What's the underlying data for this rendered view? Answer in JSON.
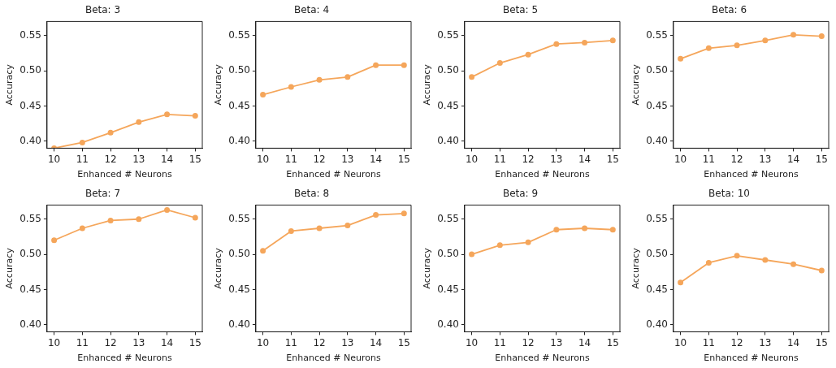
{
  "chart_data": [
    {
      "type": "line",
      "title": "Beta: 3",
      "xlabel": "Enhanced # Neurons",
      "ylabel": "Accuracy",
      "x": [
        10,
        11,
        12,
        13,
        14,
        15
      ],
      "series": [
        {
          "color": "#f5a65b",
          "values": [
            0.39,
            0.398,
            0.412,
            0.427,
            0.438,
            0.436
          ]
        }
      ],
      "xlim": [
        9.75,
        15.25
      ],
      "xticks": [
        10,
        11,
        12,
        13,
        14,
        15
      ],
      "ylim": [
        0.39,
        0.57
      ],
      "yticks": [
        {
          "value": 0.4,
          "label": "0.40"
        },
        {
          "value": 0.45,
          "label": "0.45"
        },
        {
          "value": 0.5,
          "label": "0.50"
        },
        {
          "value": 0.55,
          "label": "0.55"
        }
      ],
      "marker": "circle",
      "line_style": "solid",
      "grid": false,
      "legend": false
    },
    {
      "type": "line",
      "title": "Beta: 4",
      "xlabel": "Enhanced # Neurons",
      "ylabel": "Accuracy",
      "x": [
        10,
        11,
        12,
        13,
        14,
        15
      ],
      "series": [
        {
          "color": "#f5a65b",
          "values": [
            0.466,
            0.477,
            0.487,
            0.491,
            0.508,
            0.508
          ]
        }
      ],
      "xlim": [
        9.75,
        15.25
      ],
      "xticks": [
        10,
        11,
        12,
        13,
        14,
        15
      ],
      "ylim": [
        0.39,
        0.57
      ],
      "yticks": [
        {
          "value": 0.4,
          "label": "0.40"
        },
        {
          "value": 0.45,
          "label": "0.45"
        },
        {
          "value": 0.5,
          "label": "0.50"
        },
        {
          "value": 0.55,
          "label": "0.55"
        }
      ],
      "marker": "circle",
      "line_style": "solid",
      "grid": false,
      "legend": false
    },
    {
      "type": "line",
      "title": "Beta: 5",
      "xlabel": "Enhanced # Neurons",
      "ylabel": "Accuracy",
      "x": [
        10,
        11,
        12,
        13,
        14,
        15
      ],
      "series": [
        {
          "color": "#f5a65b",
          "values": [
            0.491,
            0.511,
            0.523,
            0.538,
            0.54,
            0.543
          ]
        }
      ],
      "xlim": [
        9.75,
        15.25
      ],
      "xticks": [
        10,
        11,
        12,
        13,
        14,
        15
      ],
      "ylim": [
        0.39,
        0.57
      ],
      "yticks": [
        {
          "value": 0.4,
          "label": "0.40"
        },
        {
          "value": 0.45,
          "label": "0.45"
        },
        {
          "value": 0.5,
          "label": "0.50"
        },
        {
          "value": 0.55,
          "label": "0.55"
        }
      ],
      "marker": "circle",
      "line_style": "solid",
      "grid": false,
      "legend": false
    },
    {
      "type": "line",
      "title": "Beta: 6",
      "xlabel": "Enhanced # Neurons",
      "ylabel": "Accuracy",
      "x": [
        10,
        11,
        12,
        13,
        14,
        15
      ],
      "series": [
        {
          "color": "#f5a65b",
          "values": [
            0.517,
            0.532,
            0.536,
            0.543,
            0.551,
            0.549
          ]
        }
      ],
      "xlim": [
        9.75,
        15.25
      ],
      "xticks": [
        10,
        11,
        12,
        13,
        14,
        15
      ],
      "ylim": [
        0.39,
        0.57
      ],
      "yticks": [
        {
          "value": 0.4,
          "label": "0.40"
        },
        {
          "value": 0.45,
          "label": "0.45"
        },
        {
          "value": 0.5,
          "label": "0.50"
        },
        {
          "value": 0.55,
          "label": "0.55"
        }
      ],
      "marker": "circle",
      "line_style": "solid",
      "grid": false,
      "legend": false
    },
    {
      "type": "line",
      "title": "Beta: 7",
      "xlabel": "Enhanced # Neurons",
      "ylabel": "Accuracy",
      "x": [
        10,
        11,
        12,
        13,
        14,
        15
      ],
      "series": [
        {
          "color": "#f5a65b",
          "values": [
            0.52,
            0.537,
            0.548,
            0.55,
            0.563,
            0.552
          ]
        }
      ],
      "xlim": [
        9.75,
        15.25
      ],
      "xticks": [
        10,
        11,
        12,
        13,
        14,
        15
      ],
      "ylim": [
        0.39,
        0.57
      ],
      "yticks": [
        {
          "value": 0.4,
          "label": "0.40"
        },
        {
          "value": 0.45,
          "label": "0.45"
        },
        {
          "value": 0.5,
          "label": "0.50"
        },
        {
          "value": 0.55,
          "label": "0.55"
        }
      ],
      "marker": "circle",
      "line_style": "solid",
      "grid": false,
      "legend": false
    },
    {
      "type": "line",
      "title": "Beta: 8",
      "xlabel": "Enhanced # Neurons",
      "ylabel": "Accuracy",
      "x": [
        10,
        11,
        12,
        13,
        14,
        15
      ],
      "series": [
        {
          "color": "#f5a65b",
          "values": [
            0.505,
            0.533,
            0.537,
            0.541,
            0.556,
            0.558
          ]
        }
      ],
      "xlim": [
        9.75,
        15.25
      ],
      "xticks": [
        10,
        11,
        12,
        13,
        14,
        15
      ],
      "ylim": [
        0.39,
        0.57
      ],
      "yticks": [
        {
          "value": 0.4,
          "label": "0.40"
        },
        {
          "value": 0.45,
          "label": "0.45"
        },
        {
          "value": 0.5,
          "label": "0.50"
        },
        {
          "value": 0.55,
          "label": "0.55"
        }
      ],
      "marker": "circle",
      "line_style": "solid",
      "grid": false,
      "legend": false
    },
    {
      "type": "line",
      "title": "Beta: 9",
      "xlabel": "Enhanced # Neurons",
      "ylabel": "Accuracy",
      "x": [
        10,
        11,
        12,
        13,
        14,
        15
      ],
      "series": [
        {
          "color": "#f5a65b",
          "values": [
            0.5,
            0.513,
            0.517,
            0.535,
            0.537,
            0.535
          ]
        }
      ],
      "xlim": [
        9.75,
        15.25
      ],
      "xticks": [
        10,
        11,
        12,
        13,
        14,
        15
      ],
      "ylim": [
        0.39,
        0.57
      ],
      "yticks": [
        {
          "value": 0.4,
          "label": "0.40"
        },
        {
          "value": 0.45,
          "label": "0.45"
        },
        {
          "value": 0.5,
          "label": "0.50"
        },
        {
          "value": 0.55,
          "label": "0.55"
        }
      ],
      "marker": "circle",
      "line_style": "solid",
      "grid": false,
      "legend": false
    },
    {
      "type": "line",
      "title": "Beta: 10",
      "xlabel": "Enhanced # Neurons",
      "ylabel": "Accuracy",
      "x": [
        10,
        11,
        12,
        13,
        14,
        15
      ],
      "series": [
        {
          "color": "#f5a65b",
          "values": [
            0.46,
            0.488,
            0.498,
            0.492,
            0.486,
            0.477
          ]
        }
      ],
      "xlim": [
        9.75,
        15.25
      ],
      "xticks": [
        10,
        11,
        12,
        13,
        14,
        15
      ],
      "ylim": [
        0.39,
        0.57
      ],
      "yticks": [
        {
          "value": 0.4,
          "label": "0.40"
        },
        {
          "value": 0.45,
          "label": "0.45"
        },
        {
          "value": 0.5,
          "label": "0.50"
        },
        {
          "value": 0.55,
          "label": "0.55"
        }
      ],
      "marker": "circle",
      "line_style": "solid",
      "grid": false,
      "legend": false
    }
  ]
}
